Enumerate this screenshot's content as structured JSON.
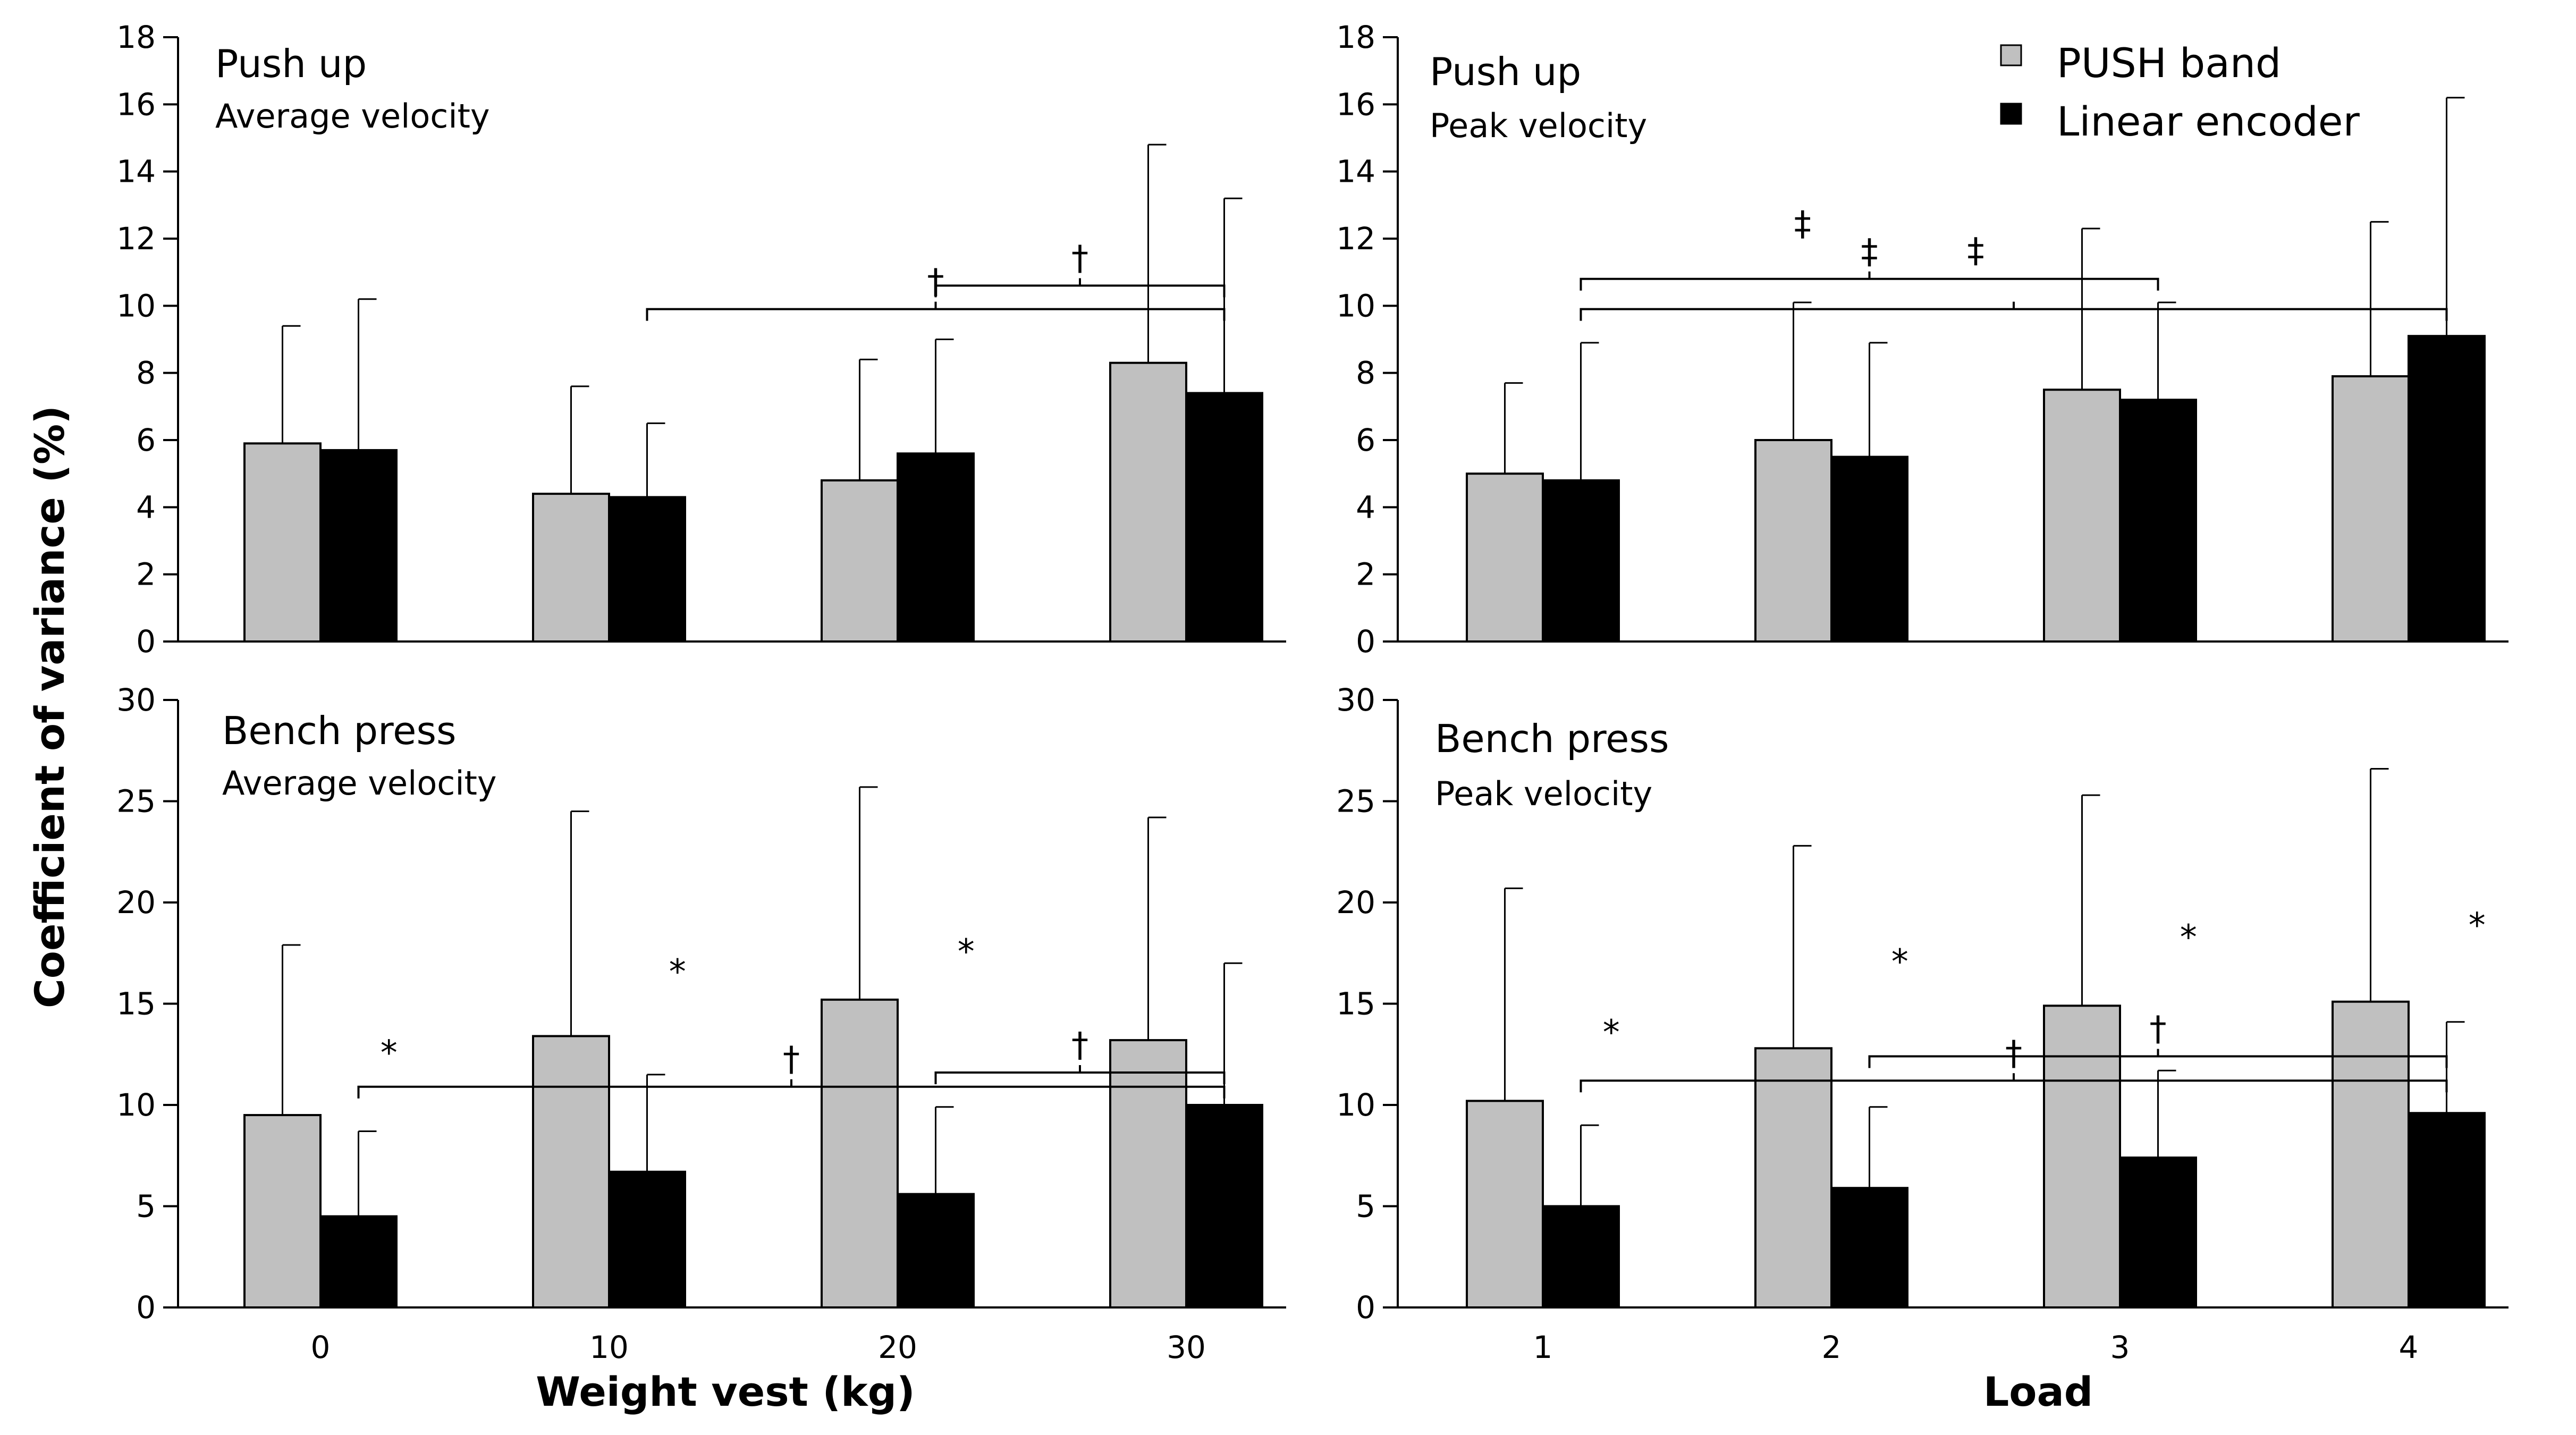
{
  "figure": {
    "y_axis_label": "Coefficient of variance (%)",
    "x_axis_label_left": "Weight vest (kg)",
    "x_axis_label_right": "Load"
  },
  "legend": {
    "items": [
      {
        "label": "PUSH band",
        "color": "#c0c0c0"
      },
      {
        "label": "Linear encoder",
        "color": "#000000"
      }
    ]
  },
  "chart_data": [
    {
      "type": "bar",
      "id": "pushup-avg",
      "title": "Push up",
      "subtitle": "Average velocity",
      "categories": [
        "0",
        "10",
        "20",
        "30"
      ],
      "ylim": [
        0,
        18
      ],
      "yticks": [
        "0",
        "2",
        "4",
        "6",
        "8",
        "10",
        "12",
        "14",
        "16",
        "18"
      ],
      "series": [
        {
          "name": "PUSH band",
          "color": "#c0c0c0",
          "values": [
            5.9,
            4.4,
            4.8,
            8.3
          ],
          "error": [
            3.5,
            3.2,
            3.6,
            6.5
          ]
        },
        {
          "name": "Linear encoder",
          "color": "#000000",
          "values": [
            5.7,
            4.3,
            5.6,
            7.4
          ],
          "error": [
            4.5,
            2.2,
            3.4,
            5.8
          ]
        }
      ],
      "brackets": [
        {
          "from": 1,
          "to": 3,
          "level": 9.9,
          "symbol": "†"
        },
        {
          "from": 2,
          "to": 3,
          "level": 10.6,
          "symbol": "†"
        }
      ],
      "stars": []
    },
    {
      "type": "bar",
      "id": "pushup-peak",
      "title": "Push up",
      "subtitle": "Peak velocity",
      "categories": [
        "1",
        "2",
        "3",
        "4"
      ],
      "ylim": [
        0,
        18
      ],
      "yticks": [
        "0",
        "2",
        "4",
        "6",
        "8",
        "10",
        "12",
        "14",
        "16",
        "18"
      ],
      "series": [
        {
          "name": "PUSH band",
          "color": "#c0c0c0",
          "values": [
            5.0,
            6.0,
            7.5,
            7.9
          ],
          "error": [
            2.7,
            4.1,
            4.8,
            4.6
          ]
        },
        {
          "name": "Linear encoder",
          "color": "#000000",
          "values": [
            4.8,
            5.5,
            7.2,
            9.1
          ],
          "error": [
            4.1,
            3.4,
            2.9,
            7.1
          ]
        }
      ],
      "brackets": [
        {
          "from": 0,
          "to": 3,
          "level": 9.9,
          "symbol": ""
        },
        {
          "from": 0,
          "to": 2,
          "level": 10.8,
          "symbol": "‡"
        }
      ],
      "bracket_labels": [
        {
          "category": 1.5,
          "level": 11.3,
          "symbol": "‡"
        },
        {
          "category": 0.9,
          "level": 12.1,
          "symbol": "‡"
        }
      ],
      "stars": []
    },
    {
      "type": "bar",
      "id": "bench-avg",
      "title": "Bench press",
      "subtitle": "Average velocity",
      "categories": [
        "0",
        "10",
        "20",
        "30"
      ],
      "ylim": [
        0,
        30
      ],
      "yticks": [
        "0",
        "5",
        "10",
        "15",
        "20",
        "25",
        "30"
      ],
      "series": [
        {
          "name": "PUSH band",
          "color": "#c0c0c0",
          "values": [
            9.5,
            13.4,
            15.2,
            13.2
          ],
          "error": [
            8.4,
            11.1,
            10.5,
            11.0
          ]
        },
        {
          "name": "Linear encoder",
          "color": "#000000",
          "values": [
            4.5,
            6.7,
            5.6,
            10.0
          ],
          "error": [
            4.2,
            4.8,
            4.3,
            7.0
          ]
        }
      ],
      "brackets": [
        {
          "from": 0,
          "to": 3,
          "level": 10.9,
          "symbol": "†"
        },
        {
          "from": 2,
          "to": 3,
          "level": 11.6,
          "symbol": "†"
        }
      ],
      "stars": [
        {
          "category": 0,
          "level": 12.0,
          "symbol": "*"
        },
        {
          "category": 1,
          "level": 16.0,
          "symbol": "*"
        },
        {
          "category": 2,
          "level": 17.0,
          "symbol": "*"
        }
      ]
    },
    {
      "type": "bar",
      "id": "bench-peak",
      "title": "Bench press",
      "subtitle": "Peak velocity",
      "categories": [
        "1",
        "2",
        "3",
        "4"
      ],
      "ylim": [
        0,
        30
      ],
      "yticks": [
        "0",
        "5",
        "10",
        "15",
        "20",
        "25",
        "30"
      ],
      "series": [
        {
          "name": "PUSH band",
          "color": "#c0c0c0",
          "values": [
            10.2,
            12.8,
            14.9,
            15.1
          ],
          "error": [
            10.5,
            10.0,
            10.4,
            11.5
          ]
        },
        {
          "name": "Linear encoder",
          "color": "#000000",
          "values": [
            5.0,
            5.9,
            7.4,
            9.6
          ],
          "error": [
            4.0,
            4.0,
            4.3,
            4.5
          ]
        }
      ],
      "brackets": [
        {
          "from": 0,
          "to": 3,
          "level": 11.2,
          "symbol": "†"
        },
        {
          "from": 1,
          "to": 3,
          "level": 12.4,
          "symbol": "†"
        }
      ],
      "stars": [
        {
          "category": 0,
          "level": 13.0,
          "symbol": "*"
        },
        {
          "category": 1,
          "level": 16.5,
          "symbol": "*"
        },
        {
          "category": 2,
          "level": 17.7,
          "symbol": "*"
        },
        {
          "category": 3,
          "level": 18.3,
          "symbol": "*"
        }
      ]
    }
  ]
}
